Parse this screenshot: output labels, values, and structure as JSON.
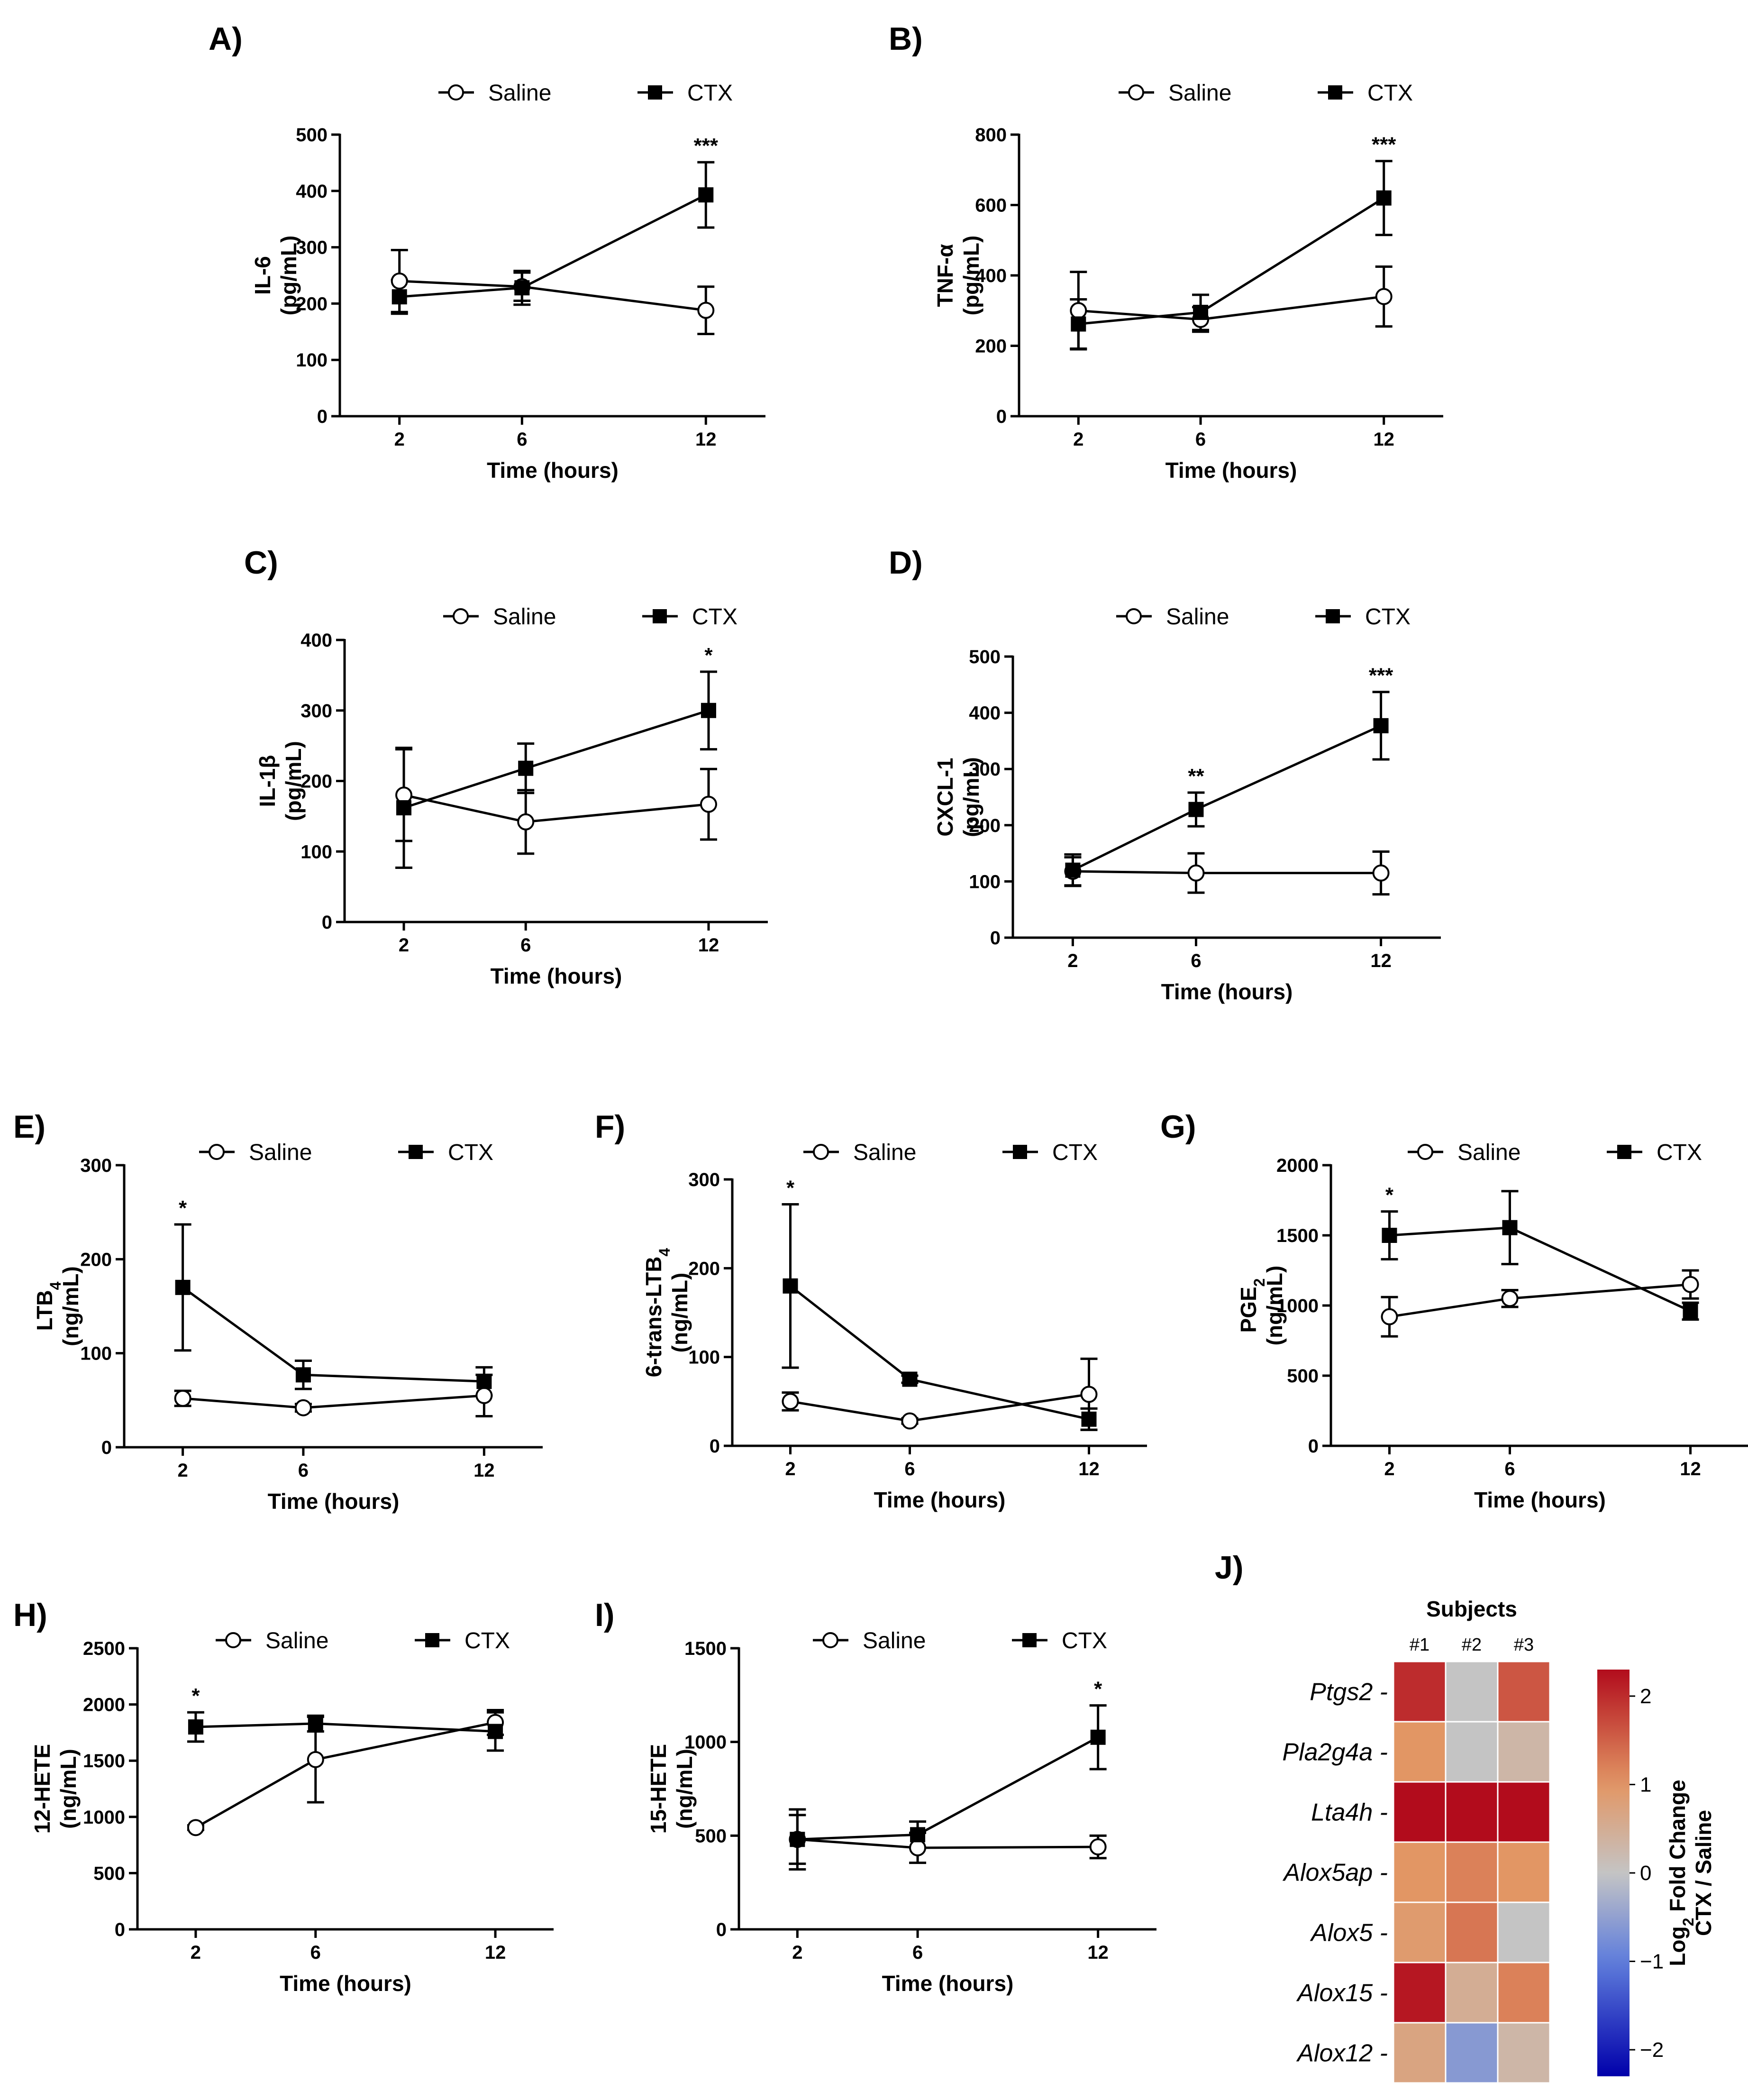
{
  "chart_data": [
    {
      "type": "line",
      "panel": "A)",
      "ylabel": "IL-6",
      "yunit": "(pg/mL)",
      "xlabel": "Time (hours)",
      "x": [
        2,
        6,
        12
      ],
      "ylim": [
        0,
        500
      ],
      "yticks": [
        0,
        100,
        200,
        300,
        400,
        500
      ],
      "series": [
        {
          "name": "Saline",
          "marker": "open-circle",
          "values": [
            240,
            230,
            188
          ],
          "errors": [
            55,
            25,
            42
          ]
        },
        {
          "name": "CTX",
          "marker": "filled-square",
          "values": [
            212,
            228,
            393
          ],
          "errors": [
            30,
            30,
            58
          ]
        }
      ],
      "annotations": [
        {
          "x": 12,
          "text": "***"
        }
      ]
    },
    {
      "type": "line",
      "panel": "B)",
      "ylabel": "TNF-α",
      "yunit": "(pg/mL)",
      "xlabel": "Time (hours)",
      "x": [
        2,
        6,
        12
      ],
      "ylim": [
        0,
        800
      ],
      "yticks": [
        0,
        200,
        400,
        600,
        800
      ],
      "series": [
        {
          "name": "Saline",
          "marker": "open-circle",
          "values": [
            300,
            275,
            340
          ],
          "errors": [
            110,
            35,
            85
          ]
        },
        {
          "name": "CTX",
          "marker": "filled-square",
          "values": [
            262,
            295,
            620
          ],
          "errors": [
            70,
            50,
            105
          ]
        }
      ],
      "annotations": [
        {
          "x": 12,
          "text": "***"
        }
      ]
    },
    {
      "type": "line",
      "panel": "C)",
      "ylabel": "IL-1β",
      "yunit": "(pg/mL)",
      "xlabel": "Time (hours)",
      "x": [
        2,
        6,
        12
      ],
      "ylim": [
        0,
        400
      ],
      "yticks": [
        0,
        100,
        200,
        300,
        400
      ],
      "series": [
        {
          "name": "Saline",
          "marker": "open-circle",
          "values": [
            180,
            142,
            167
          ],
          "errors": [
            65,
            45,
            50
          ]
        },
        {
          "name": "CTX",
          "marker": "filled-square",
          "values": [
            162,
            218,
            300
          ],
          "errors": [
            85,
            35,
            55
          ]
        }
      ],
      "annotations": [
        {
          "x": 12,
          "text": "*"
        }
      ]
    },
    {
      "type": "line",
      "panel": "D)",
      "ylabel": "CXCL-1",
      "yunit": "(pg/mL)",
      "xlabel": "Time (hours)",
      "x": [
        2,
        6,
        12
      ],
      "ylim": [
        0,
        500
      ],
      "yticks": [
        0,
        100,
        200,
        300,
        400,
        500
      ],
      "series": [
        {
          "name": "Saline",
          "marker": "open-circle",
          "values": [
            118,
            115,
            115
          ],
          "errors": [
            25,
            35,
            38
          ]
        },
        {
          "name": "CTX",
          "marker": "filled-square",
          "values": [
            120,
            228,
            377
          ],
          "errors": [
            28,
            30,
            60
          ]
        }
      ],
      "annotations": [
        {
          "x": 6,
          "text": "**"
        },
        {
          "x": 12,
          "text": "***"
        }
      ]
    },
    {
      "type": "line",
      "panel": "E)",
      "ylabel": "LTB",
      "ysub": "4",
      "yunit": "(ng/mL)",
      "xlabel": "Time (hours)",
      "x": [
        2,
        6,
        12
      ],
      "ylim": [
        0,
        300
      ],
      "yticks": [
        0,
        100,
        200,
        300
      ],
      "series": [
        {
          "name": "Saline",
          "marker": "open-circle",
          "values": [
            52,
            42,
            55
          ],
          "errors": [
            8,
            4,
            22
          ]
        },
        {
          "name": "CTX",
          "marker": "filled-square",
          "values": [
            170,
            77,
            70
          ],
          "errors": [
            67,
            15,
            15
          ]
        }
      ],
      "annotations": [
        {
          "x": 2,
          "text": "*"
        }
      ]
    },
    {
      "type": "line",
      "panel": "F)",
      "ylabel": "6-trans-LTB",
      "ysub": "4",
      "yunit": "(ng/mL)",
      "xlabel": "Time (hours)",
      "x": [
        2,
        6,
        12
      ],
      "ylim": [
        0,
        300
      ],
      "yticks": [
        0,
        100,
        200,
        300
      ],
      "series": [
        {
          "name": "Saline",
          "marker": "open-circle",
          "values": [
            50,
            28,
            58
          ],
          "errors": [
            10,
            3,
            40
          ]
        },
        {
          "name": "CTX",
          "marker": "filled-square",
          "values": [
            180,
            75,
            30
          ],
          "errors": [
            92,
            4,
            12
          ]
        }
      ],
      "annotations": [
        {
          "x": 2,
          "text": "*"
        }
      ]
    },
    {
      "type": "line",
      "panel": "G)",
      "ylabel": "PGE",
      "ysub": "2",
      "yunit": "(ng/mL)",
      "xlabel": "Time (hours)",
      "x": [
        2,
        6,
        12
      ],
      "ylim": [
        0,
        2000
      ],
      "yticks": [
        0,
        500,
        1000,
        1500,
        2000
      ],
      "series": [
        {
          "name": "Saline",
          "marker": "open-circle",
          "values": [
            920,
            1050,
            1150
          ],
          "errors": [
            140,
            60,
            100
          ]
        },
        {
          "name": "CTX",
          "marker": "filled-square",
          "values": [
            1500,
            1555,
            960
          ],
          "errors": [
            170,
            260,
            60
          ]
        }
      ],
      "annotations": [
        {
          "x": 2,
          "text": "*"
        }
      ]
    },
    {
      "type": "line",
      "panel": "H)",
      "ylabel": "12-HETE",
      "yunit": "(ng/mL)",
      "xlabel": "Time (hours)",
      "x": [
        2,
        6,
        12
      ],
      "ylim": [
        0,
        2500
      ],
      "yticks": [
        0,
        500,
        1000,
        1500,
        2000,
        2500
      ],
      "series": [
        {
          "name": "Saline",
          "marker": "open-circle",
          "values": [
            905,
            1510,
            1840
          ],
          "errors": [
            20,
            380,
            110
          ]
        },
        {
          "name": "CTX",
          "marker": "filled-square",
          "values": [
            1800,
            1830,
            1760
          ],
          "errors": [
            130,
            70,
            170
          ]
        }
      ],
      "annotations": [
        {
          "x": 2,
          "text": "*"
        }
      ]
    },
    {
      "type": "line",
      "panel": "I)",
      "ylabel": "15-HETE",
      "yunit": "(ng/mL)",
      "xlabel": "Time (hours)",
      "x": [
        2,
        6,
        12
      ],
      "ylim": [
        0,
        1500
      ],
      "yticks": [
        0,
        500,
        1000,
        1500
      ],
      "series": [
        {
          "name": "Saline",
          "marker": "open-circle",
          "values": [
            480,
            435,
            440
          ],
          "errors": [
            130,
            80,
            60
          ]
        },
        {
          "name": "CTX",
          "marker": "filled-square",
          "values": [
            480,
            505,
            1025
          ],
          "errors": [
            160,
            70,
            170
          ]
        }
      ],
      "annotations": [
        {
          "x": 12,
          "text": "*"
        }
      ]
    },
    {
      "type": "heatmap",
      "panel": "J)",
      "title": "Subjects",
      "columns": [
        "#1",
        "#2",
        "#3"
      ],
      "rows": [
        "Ptgs2",
        "Pla2g4a",
        "Lta4h",
        "Alox5ap",
        "Alox5",
        "Alox15",
        "Alox12"
      ],
      "values": [
        [
          2.0,
          0.0,
          1.6
        ],
        [
          1.0,
          0.0,
          0.3
        ],
        [
          2.4,
          2.4,
          2.4
        ],
        [
          1.0,
          1.2,
          1.0
        ],
        [
          0.9,
          1.3,
          0.0
        ],
        [
          2.2,
          0.5,
          1.2
        ],
        [
          0.7,
          -0.6,
          0.3
        ]
      ],
      "colorbar": {
        "ticks": [
          2,
          1,
          0,
          -1,
          -2
        ],
        "tick_labels": [
          "2",
          "1",
          "0",
          "−1",
          "−2"
        ],
        "range": [
          -2.3,
          2.3
        ],
        "title_prefix": "Log",
        "title_sub": "2",
        "title_suffix": " Fold Change",
        "title_line2": "CTX / Saline"
      }
    }
  ]
}
